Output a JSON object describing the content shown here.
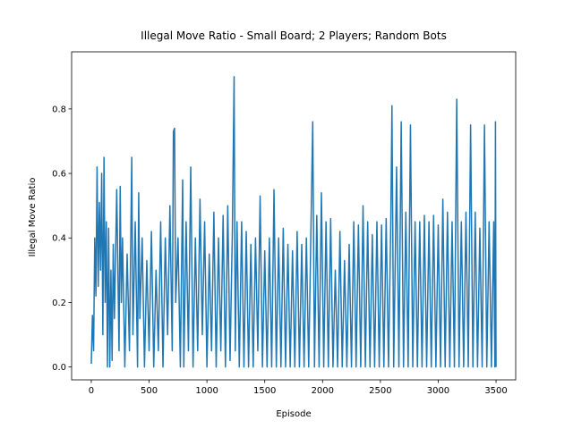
{
  "chart_data": {
    "type": "line",
    "title": "Illegal Move Ratio - Small Board; 2 Players; Random Bots",
    "xlabel": "Episode",
    "ylabel": "Illegal Move Ratio",
    "color": "#1f77b4",
    "x": [
      0,
      10,
      20,
      30,
      40,
      50,
      60,
      70,
      80,
      90,
      100,
      110,
      120,
      130,
      140,
      150,
      160,
      170,
      180,
      190,
      200,
      220,
      240,
      250,
      260,
      270,
      290,
      310,
      330,
      350,
      360,
      380,
      400,
      410,
      420,
      440,
      460,
      480,
      500,
      520,
      540,
      560,
      580,
      600,
      620,
      640,
      660,
      680,
      700,
      710,
      720,
      730,
      750,
      770,
      790,
      800,
      820,
      840,
      860,
      880,
      900,
      920,
      940,
      960,
      980,
      1000,
      1020,
      1040,
      1060,
      1080,
      1100,
      1120,
      1140,
      1160,
      1180,
      1200,
      1220,
      1235,
      1245,
      1260,
      1280,
      1300,
      1320,
      1340,
      1360,
      1380,
      1400,
      1420,
      1440,
      1460,
      1480,
      1500,
      1520,
      1540,
      1560,
      1580,
      1600,
      1620,
      1640,
      1660,
      1680,
      1700,
      1720,
      1740,
      1760,
      1780,
      1800,
      1820,
      1840,
      1860,
      1880,
      1900,
      1915,
      1930,
      1950,
      1970,
      1990,
      2010,
      2030,
      2050,
      2070,
      2090,
      2110,
      2130,
      2150,
      2170,
      2190,
      2210,
      2230,
      2250,
      2270,
      2290,
      2310,
      2330,
      2350,
      2370,
      2390,
      2410,
      2430,
      2450,
      2470,
      2490,
      2510,
      2530,
      2550,
      2570,
      2590,
      2600,
      2615,
      2640,
      2660,
      2680,
      2700,
      2720,
      2740,
      2760,
      2780,
      2800,
      2820,
      2840,
      2860,
      2880,
      2900,
      2920,
      2940,
      2960,
      2980,
      3000,
      3020,
      3040,
      3060,
      3080,
      3100,
      3120,
      3140,
      3160,
      3180,
      3200,
      3220,
      3240,
      3260,
      3280,
      3300,
      3320,
      3340,
      3360,
      3380,
      3400,
      3420,
      3440,
      3460,
      3480,
      3490,
      3495,
      3500
    ],
    "values": [
      0.01,
      0.16,
      0.05,
      0.4,
      0.22,
      0.62,
      0.25,
      0.51,
      0.3,
      0.6,
      0.1,
      0.65,
      0.2,
      0.45,
      0,
      0.43,
      0,
      0.3,
      0.02,
      0.38,
      0.15,
      0.55,
      0.05,
      0.56,
      0.2,
      0.4,
      0,
      0.35,
      0.05,
      0.65,
      0.1,
      0.45,
      0,
      0.54,
      0.15,
      0.4,
      0,
      0.33,
      0.05,
      0.42,
      0,
      0.3,
      0.05,
      0.45,
      0,
      0.4,
      0.1,
      0.5,
      0.05,
      0.73,
      0.74,
      0.2,
      0.4,
      0,
      0.58,
      0,
      0.45,
      0.05,
      0.62,
      0,
      0.4,
      0.05,
      0.52,
      0.1,
      0.45,
      0,
      0.35,
      0.05,
      0.48,
      0,
      0.4,
      0.05,
      0.47,
      0,
      0.5,
      0.02,
      0.42,
      0.9,
      0.05,
      0.45,
      0,
      0.45,
      0,
      0.42,
      0,
      0.38,
      0,
      0.4,
      0.05,
      0.53,
      0,
      0.36,
      0,
      0.4,
      0,
      0.55,
      0,
      0.4,
      0,
      0.43,
      0,
      0.38,
      0,
      0.36,
      0,
      0.42,
      0,
      0.38,
      0,
      0.4,
      0,
      0.44,
      0.76,
      0,
      0.47,
      0,
      0.54,
      0,
      0.45,
      0,
      0.46,
      0,
      0.3,
      0,
      0.42,
      0,
      0.33,
      0,
      0.38,
      0,
      0.45,
      0,
      0.44,
      0,
      0.5,
      0,
      0.45,
      0,
      0.41,
      0,
      0.45,
      0,
      0.44,
      0,
      0.46,
      0,
      0.45,
      0.81,
      0,
      0.62,
      0,
      0.76,
      0,
      0.48,
      0,
      0.75,
      0,
      0.45,
      0,
      0.45,
      0,
      0.47,
      0,
      0.45,
      0,
      0.47,
      0,
      0.44,
      0,
      0.52,
      0,
      0.48,
      0,
      0.45,
      0,
      0.83,
      0,
      0.45,
      0,
      0.48,
      0,
      0.75,
      0,
      0.48,
      0,
      0.43,
      0,
      0.75,
      0,
      0.45,
      0,
      0.45,
      0,
      0.76,
      0
    ],
    "xlim": [
      -170,
      3670
    ],
    "ylim": [
      -0.04,
      0.977
    ],
    "xticks": [
      0,
      500,
      1000,
      1500,
      2000,
      2500,
      3000,
      3500
    ],
    "yticks": [
      {
        "value": 0,
        "label": "0.0"
      },
      0.2,
      0.4,
      0.6,
      0.8
    ],
    "grid": false
  }
}
